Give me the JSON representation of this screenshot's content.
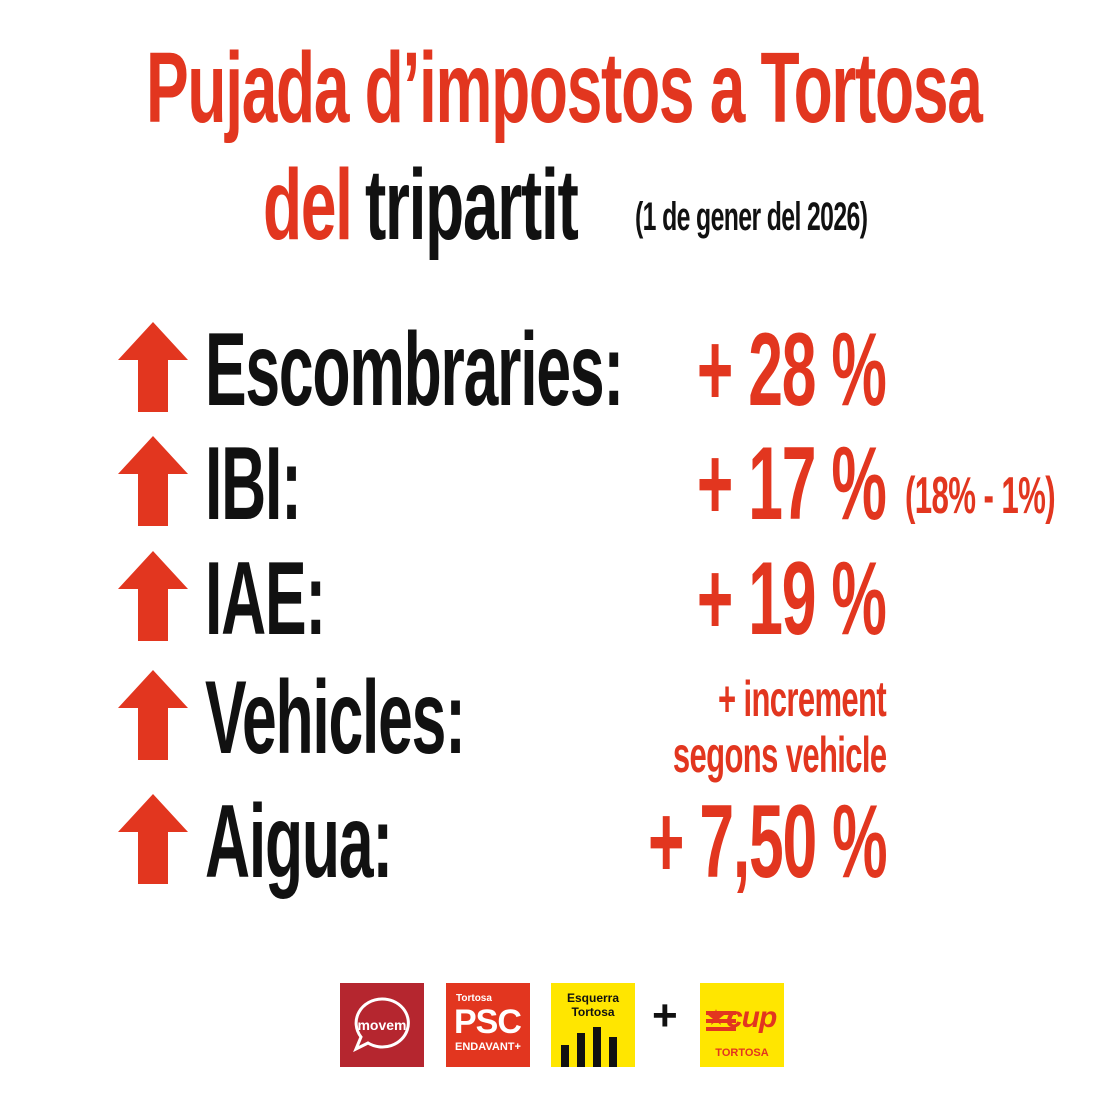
{
  "title": {
    "line1": "Pujada d’impostos a Tortosa",
    "line2_red": "del",
    "line2_black": "tripartit",
    "date": "(1 de gener del 2026)"
  },
  "rows": [
    {
      "label": "Escombraries:",
      "value": "+ 28 %"
    },
    {
      "label": "IBI:",
      "value": "+ 17 %",
      "note": "(18% - 1%)"
    },
    {
      "label": "IAE:",
      "value": "+ 19 %"
    },
    {
      "label": "Vehicles:",
      "value_line1": "+ increment",
      "value_line2": "segons vehicle"
    },
    {
      "label": "Aigua:",
      "value": "+ 7,50 %"
    }
  ],
  "logos": {
    "movem": {
      "text": "movem",
      "bg": "#b5262f"
    },
    "psc": {
      "small": "Tortosa",
      "main": "PSC",
      "sub": "ENDAVANT+",
      "bg": "#e2361f"
    },
    "esquerra": {
      "line1": "Esquerra",
      "line2": "Tortosa",
      "bg": "#ffe600"
    },
    "plus": "+",
    "cup": {
      "main": "cup",
      "sub": "TORTOSA",
      "bg": "#ffe600"
    }
  },
  "colors": {
    "accent": "#e2361f",
    "text": "#111111"
  },
  "icons": {
    "row_icon": "arrow-up-icon"
  }
}
